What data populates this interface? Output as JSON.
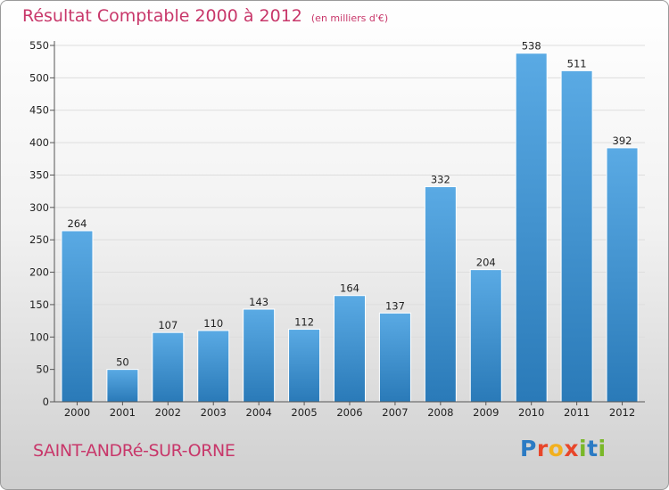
{
  "chart_data": {
    "type": "bar",
    "title": "Résultat Comptable 2000 à 2012",
    "subtitle": "(en milliers d'€)",
    "categories": [
      "2000",
      "2001",
      "2002",
      "2003",
      "2004",
      "2005",
      "2006",
      "2007",
      "2008",
      "2009",
      "2010",
      "2011",
      "2012"
    ],
    "values": [
      264,
      50,
      107,
      110,
      143,
      112,
      164,
      137,
      332,
      204,
      538,
      511,
      392
    ],
    "ylim": [
      0,
      550
    ],
    "yticks": [
      0,
      50,
      100,
      150,
      200,
      250,
      300,
      350,
      400,
      450,
      500,
      550
    ],
    "grid": true,
    "bar_color_top": "#5aaae4",
    "bar_color_bottom": "#2a7ab8"
  },
  "footer": {
    "commune": "SAINT-ANDRé-SUR-ORNE",
    "logo_letters": [
      "P",
      "r",
      "o",
      "x",
      "i",
      "t",
      "i"
    ],
    "logo_colors": [
      "#2b7bc4",
      "#e8462a",
      "#f2b01e",
      "#e8462a",
      "#7ab829",
      "#2b7bc4",
      "#7ab829"
    ]
  },
  "colors": {
    "title": "#c8376a",
    "grid": "#dddddd",
    "axis": "#555555"
  }
}
